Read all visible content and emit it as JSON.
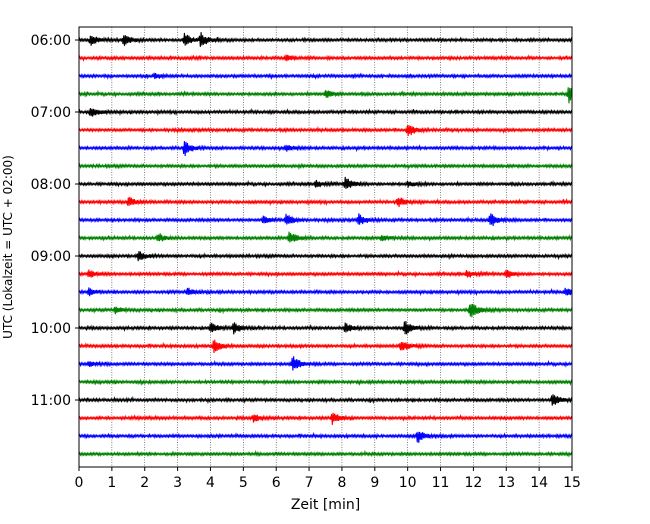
{
  "chart_data": {
    "type": "line",
    "title": "",
    "xlabel": "Zeit  [min]",
    "ylabel": "UTC (Lokalzeit = UTC + 02:00)",
    "xlim": [
      0,
      15
    ],
    "x_ticks": [
      "0",
      "1",
      "2",
      "3",
      "4",
      "5",
      "6",
      "7",
      "8",
      "9",
      "10",
      "11",
      "12",
      "13",
      "14",
      "15"
    ],
    "y_tick_labels": [
      {
        "row": 0,
        "label": "06:00"
      },
      {
        "row": 4,
        "label": "07:00"
      },
      {
        "row": 8,
        "label": "08:00"
      },
      {
        "row": 12,
        "label": "09:00"
      },
      {
        "row": 16,
        "label": "10:00"
      },
      {
        "row": 20,
        "label": "11:00"
      }
    ],
    "trace_interval_min": 15,
    "grid": {
      "vertical_dotted": true
    },
    "colors": [
      "#000000",
      "#ff0000",
      "#0000ff",
      "#008000"
    ],
    "traces": [
      {
        "start": "06:00",
        "color": "#000000",
        "events": [
          [
            0.35,
            6
          ],
          [
            1.35,
            6
          ],
          [
            3.2,
            7
          ],
          [
            3.7,
            7
          ]
        ]
      },
      {
        "start": "06:15",
        "color": "#ff0000",
        "events": [
          [
            6.3,
            3
          ]
        ]
      },
      {
        "start": "06:30",
        "color": "#0000ff",
        "events": [
          [
            2.3,
            3
          ]
        ]
      },
      {
        "start": "06:45",
        "color": "#008000",
        "events": [
          [
            7.5,
            4
          ],
          [
            14.9,
            9
          ]
        ]
      },
      {
        "start": "07:00",
        "color": "#000000",
        "events": [
          [
            0.35,
            6
          ]
        ]
      },
      {
        "start": "07:15",
        "color": "#ff0000",
        "events": [
          [
            10.0,
            7
          ]
        ]
      },
      {
        "start": "07:30",
        "color": "#0000ff",
        "events": [
          [
            3.2,
            8
          ],
          [
            6.3,
            3
          ]
        ]
      },
      {
        "start": "07:45",
        "color": "#008000",
        "events": []
      },
      {
        "start": "08:00",
        "color": "#000000",
        "events": [
          [
            7.2,
            4
          ],
          [
            8.1,
            7
          ],
          [
            10.0,
            3
          ]
        ]
      },
      {
        "start": "08:15",
        "color": "#ff0000",
        "events": [
          [
            1.5,
            5
          ],
          [
            9.7,
            5
          ]
        ]
      },
      {
        "start": "08:30",
        "color": "#0000ff",
        "events": [
          [
            5.6,
            4
          ],
          [
            6.3,
            7
          ],
          [
            8.5,
            6
          ],
          [
            12.5,
            7
          ]
        ]
      },
      {
        "start": "08:45",
        "color": "#008000",
        "events": [
          [
            2.4,
            4
          ],
          [
            6.4,
            7
          ],
          [
            9.2,
            3
          ]
        ]
      },
      {
        "start": "09:00",
        "color": "#000000",
        "events": [
          [
            1.8,
            5
          ]
        ]
      },
      {
        "start": "09:15",
        "color": "#ff0000",
        "events": [
          [
            0.3,
            4
          ],
          [
            11.8,
            4
          ],
          [
            13.0,
            4
          ]
        ]
      },
      {
        "start": "09:30",
        "color": "#0000ff",
        "events": [
          [
            0.3,
            4
          ],
          [
            3.3,
            4
          ],
          [
            14.8,
            4
          ]
        ]
      },
      {
        "start": "09:45",
        "color": "#008000",
        "events": [
          [
            1.1,
            3
          ],
          [
            11.9,
            9
          ]
        ]
      },
      {
        "start": "10:00",
        "color": "#000000",
        "events": [
          [
            4.0,
            6
          ],
          [
            4.7,
            6
          ],
          [
            8.1,
            5
          ],
          [
            9.9,
            8
          ]
        ]
      },
      {
        "start": "10:15",
        "color": "#ff0000",
        "events": [
          [
            4.1,
            7
          ],
          [
            9.8,
            6
          ]
        ]
      },
      {
        "start": "10:30",
        "color": "#0000ff",
        "events": [
          [
            0.3,
            3
          ],
          [
            6.5,
            8
          ]
        ]
      },
      {
        "start": "10:45",
        "color": "#008000",
        "events": []
      },
      {
        "start": "11:00",
        "color": "#000000",
        "events": [
          [
            14.4,
            8
          ]
        ]
      },
      {
        "start": "11:15",
        "color": "#ff0000",
        "events": [
          [
            5.3,
            4
          ],
          [
            7.7,
            6
          ]
        ]
      },
      {
        "start": "11:30",
        "color": "#0000ff",
        "events": [
          [
            10.3,
            7
          ]
        ]
      },
      {
        "start": "11:45",
        "color": "#008000",
        "events": []
      }
    ]
  }
}
